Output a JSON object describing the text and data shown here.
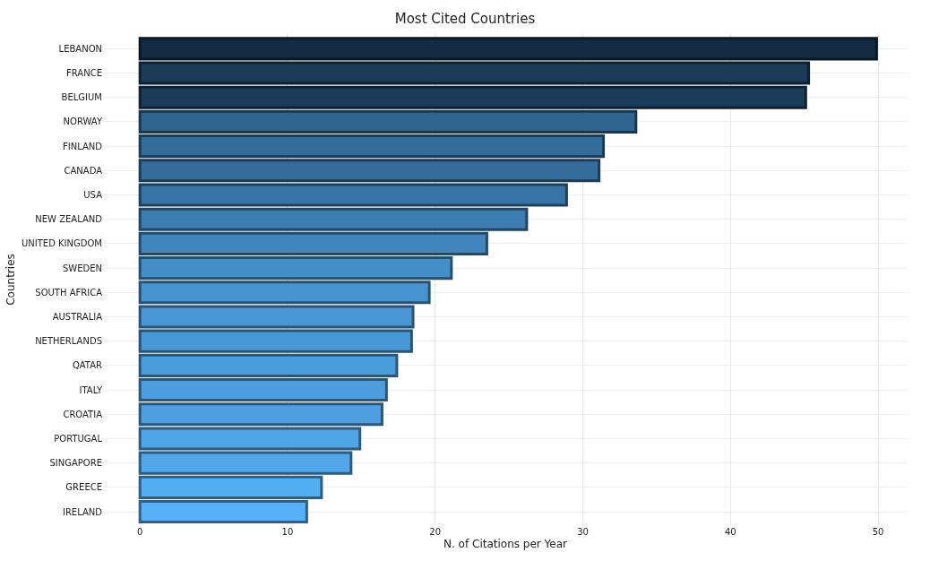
{
  "chart_data": {
    "type": "bar",
    "orientation": "horizontal",
    "title": "Most Cited Countries",
    "xlabel": "N. of Citations per Year",
    "ylabel": "Countries",
    "categories": [
      "LEBANON",
      "FRANCE",
      "BELGIUM",
      "NORWAY",
      "FINLAND",
      "CANADA",
      "USA",
      "NEW ZEALAND",
      "UNITED KINGDOM",
      "SWEDEN",
      "SOUTH AFRICA",
      "AUSTRALIA",
      "NETHERLANDS",
      "QATAR",
      "ITALY",
      "CROATIA",
      "PORTUGAL",
      "SINGAPORE",
      "GREECE",
      "IRELAND"
    ],
    "values": [
      49.9,
      45.3,
      45.1,
      33.6,
      31.4,
      31.1,
      28.9,
      26.2,
      23.5,
      21.1,
      19.6,
      18.5,
      18.4,
      17.4,
      16.7,
      16.4,
      14.9,
      14.3,
      12.3,
      11.3
    ],
    "colors": [
      "#132b43",
      "#1b3b58",
      "#1b3c59",
      "#2f648f",
      "#336b99",
      "#346c9b",
      "#3774a5",
      "#3c7db2",
      "#4187be",
      "#458fc9",
      "#4894d0",
      "#4998d5",
      "#4998d6",
      "#4b9cdb",
      "#4d9ede",
      "#4d9fdf",
      "#50a5e6",
      "#51a7e9",
      "#54aef2",
      "#56b1f7"
    ],
    "xlim": [
      -2.5,
      52
    ],
    "xticks": [
      0,
      10,
      20,
      30,
      40,
      50
    ],
    "grid": true
  }
}
